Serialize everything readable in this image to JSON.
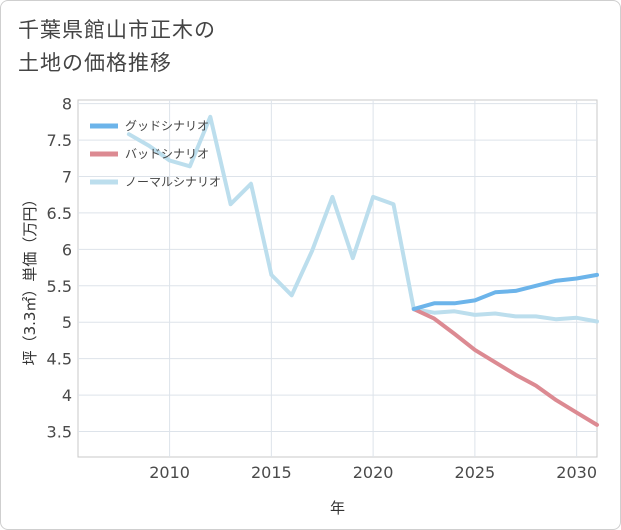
{
  "title_lines": [
    "千葉県館山市正木の",
    "土地の価格推移"
  ],
  "chart_data": {
    "type": "line",
    "xlabel": "年",
    "ylabel": "坪（3.3㎡）単価（万円）",
    "xlim": [
      2005.5,
      2031
    ],
    "ylim": [
      3.15,
      8.05
    ],
    "xticks": [
      2010,
      2015,
      2020,
      2025,
      2030
    ],
    "yticks": [
      3.5,
      4,
      4.5,
      5,
      5.5,
      6,
      6.5,
      7,
      7.5,
      8
    ],
    "xtick_labels": [
      "2010",
      "2015",
      "2020",
      "2025",
      "2030"
    ],
    "ytick_labels": [
      "3.5",
      "4",
      "4.5",
      "5",
      "5.5",
      "6",
      "6.5",
      "7",
      "7.5",
      "8"
    ],
    "grid": true,
    "legend_position": "top-left",
    "series": [
      {
        "name": "グッドシナリオ",
        "color": "#6cb4ea",
        "x": [
          2022,
          2023,
          2024,
          2025,
          2026,
          2027,
          2028,
          2029,
          2030,
          2031
        ],
        "values": [
          5.18,
          5.26,
          5.26,
          5.3,
          5.41,
          5.43,
          5.5,
          5.57,
          5.6,
          5.65
        ]
      },
      {
        "name": "バッドシナリオ",
        "color": "#dc8a92",
        "x": [
          2022,
          2023,
          2024,
          2025,
          2026,
          2027,
          2028,
          2029,
          2030,
          2031
        ],
        "values": [
          5.18,
          5.05,
          4.84,
          4.62,
          4.45,
          4.28,
          4.13,
          3.93,
          3.76,
          3.59
        ]
      },
      {
        "name": "ノーマルシナリオ",
        "color": "#bcdeed",
        "x": [
          2008,
          2009,
          2010,
          2011,
          2012,
          2013,
          2014,
          2015,
          2016,
          2017,
          2018,
          2019,
          2020,
          2021,
          2022,
          2023,
          2024,
          2025,
          2026,
          2027,
          2028,
          2029,
          2030,
          2031
        ],
        "values": [
          7.58,
          7.42,
          7.22,
          7.14,
          7.82,
          6.62,
          6.9,
          5.65,
          5.37,
          5.98,
          6.72,
          5.88,
          6.72,
          6.62,
          5.18,
          5.13,
          5.15,
          5.1,
          5.12,
          5.08,
          5.08,
          5.04,
          5.06,
          5.01
        ]
      }
    ]
  }
}
